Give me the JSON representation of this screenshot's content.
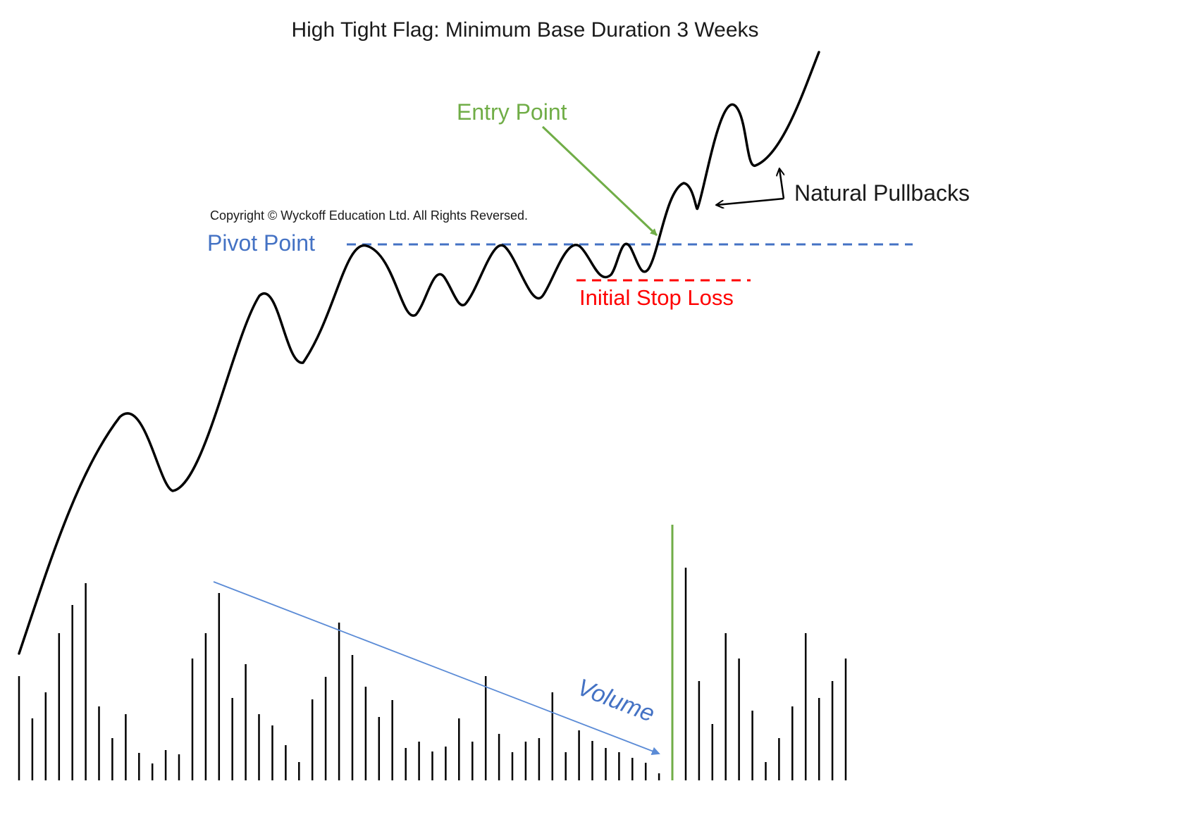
{
  "title": "High Tight Flag: Minimum Base Duration 3 Weeks",
  "copyright": "Copyright © Wyckoff Education Ltd. All Rights Reversed.",
  "labels": {
    "pivot_point": "Pivot Point",
    "entry_point": "Entry Point",
    "initial_stop_loss": "Initial Stop Loss",
    "natural_pullbacks": "Natural Pullbacks",
    "volume": "Volume"
  },
  "colors": {
    "price_line": "#000000",
    "pivot": "#4472C4",
    "entry": "#70AD47",
    "stop": "#FF0000",
    "volume_trend": "#5B8BD6",
    "volume_bars": "#000000"
  },
  "volume_bars": [
    {
      "h": 148
    },
    {
      "h": 88
    },
    {
      "h": 125
    },
    {
      "h": 209
    },
    {
      "h": 249
    },
    {
      "h": 280
    },
    {
      "h": 105
    },
    {
      "h": 60
    },
    {
      "h": 94
    },
    {
      "h": 39
    },
    {
      "h": 24
    },
    {
      "h": 43
    },
    {
      "h": 37
    },
    {
      "h": 173
    },
    {
      "h": 209
    },
    {
      "h": 266
    },
    {
      "h": 117
    },
    {
      "h": 165
    },
    {
      "h": 94
    },
    {
      "h": 78
    },
    {
      "h": 50
    },
    {
      "h": 26
    },
    {
      "h": 115
    },
    {
      "h": 147
    },
    {
      "h": 224
    },
    {
      "h": 178
    },
    {
      "h": 133
    },
    {
      "h": 90
    },
    {
      "h": 114
    },
    {
      "h": 46
    },
    {
      "h": 55
    },
    {
      "h": 41
    },
    {
      "h": 48
    },
    {
      "h": 88
    },
    {
      "h": 55
    },
    {
      "h": 148
    },
    {
      "h": 66
    },
    {
      "h": 40
    },
    {
      "h": 55
    },
    {
      "h": 60
    },
    {
      "h": 125
    },
    {
      "h": 40
    },
    {
      "h": 71
    },
    {
      "h": 56
    },
    {
      "h": 46
    },
    {
      "h": 40
    },
    {
      "h": 32
    },
    {
      "h": 25
    },
    {
      "h": 10
    },
    {
      "h": 363,
      "breakout": true
    },
    {
      "h": 302
    },
    {
      "h": 141
    },
    {
      "h": 80
    },
    {
      "h": 209
    },
    {
      "h": 173
    },
    {
      "h": 99
    },
    {
      "h": 26
    },
    {
      "h": 60
    },
    {
      "h": 105
    },
    {
      "h": 209
    },
    {
      "h": 117
    },
    {
      "h": 141
    },
    {
      "h": 173
    }
  ]
}
